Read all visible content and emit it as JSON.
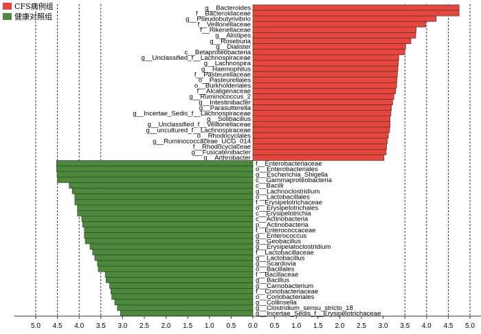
{
  "chart_data": {
    "type": "bar",
    "orientation": "horizontal",
    "title": "",
    "xlabel": "",
    "ylabel": "",
    "xlim": [
      -5.0,
      5.0
    ],
    "axis_ticks": [
      {
        "v": -5.0,
        "label": "5.0"
      },
      {
        "v": -4.5,
        "label": "4.5"
      },
      {
        "v": -4.0,
        "label": "4.0"
      },
      {
        "v": -3.5,
        "label": "3.5"
      },
      {
        "v": -3.0,
        "label": "3.0"
      },
      {
        "v": -2.5,
        "label": "2.5"
      },
      {
        "v": -2.0,
        "label": "2.0"
      },
      {
        "v": -1.5,
        "label": "1.5"
      },
      {
        "v": -1.0,
        "label": "1.0"
      },
      {
        "v": -0.5,
        "label": "0.5"
      },
      {
        "v": 0.0,
        "label": "0.0"
      },
      {
        "v": 0.5,
        "label": "0.5"
      },
      {
        "v": 1.0,
        "label": "1.0"
      },
      {
        "v": 1.5,
        "label": "1.5"
      },
      {
        "v": 2.0,
        "label": "2.0"
      },
      {
        "v": 2.5,
        "label": "2.5"
      },
      {
        "v": 3.0,
        "label": "3.0"
      },
      {
        "v": 3.5,
        "label": "3.5"
      },
      {
        "v": 4.0,
        "label": "4.0"
      },
      {
        "v": 4.5,
        "label": "4.5"
      },
      {
        "v": 5.0,
        "label": "5.0"
      }
    ],
    "dashed_gridlines": [
      -5.0,
      -4.5,
      -4.0,
      -3.5,
      3.5,
      4.0,
      4.5,
      5.0
    ],
    "legend_position": "top-left",
    "series": [
      {
        "name": "CFS病例组",
        "color": "#e8453c",
        "label_side": "left",
        "labels": [
          "g__Bacteroides",
          "f__Bacteroidaceae",
          "g__Pseudobutyrivibrio",
          "f__Veillonellaceae",
          "f__Rikenellaceae",
          "g__Alistipes",
          "g__Roseburia",
          "g__Dialister",
          "c__Betaproteobacteria",
          "g__Unclassified_f__Lachnospiraceae",
          "g__Lachnospira",
          "g__Haemophilus",
          "f__Pasteurellaceae",
          "o__Pasteurellales",
          "o__Burkholderiales",
          "f__Alcaligenaceae",
          "g__Ruminococcus_2",
          "g__Intestinibacter",
          "g__Parasutterella",
          "g__Incertae_Sedis_f__Lachnospiraceae",
          "g__Solibacillus",
          "g__Unclassified_f__Veillonellaceae",
          "g__uncultured_f__Lachnospiraceae",
          "o__Rhodocyclales",
          "g__Ruminococcaceae_UCG_014",
          "f__Rhodocyclaceae",
          "g__Fusicatenibacter",
          "g__Arthrobacter"
        ],
        "values": [
          4.75,
          4.75,
          4.22,
          3.98,
          3.76,
          3.75,
          3.64,
          3.52,
          3.5,
          3.36,
          3.35,
          3.34,
          3.33,
          3.32,
          3.31,
          3.29,
          3.25,
          3.22,
          3.19,
          3.18,
          3.16,
          3.16,
          3.15,
          3.12,
          3.1,
          3.08,
          3.07,
          3.02
        ]
      },
      {
        "name": "健康对照组",
        "color": "#4a8a3a",
        "label_side": "right",
        "labels": [
          "f__Enterobacteriaceae",
          "o__Enterobacteriales",
          "g__Escherichia_Shigella",
          "c__Gammaproteobacteria",
          "c__Bacilli",
          "g__Lachnoclostridium",
          "o__Lactobacillales",
          "f__Erysipelotrichaceae",
          "o__Erysipelotrichales",
          "c__Erysipelotrichia",
          "c__Actinobacteria",
          "p__Actinobacteria",
          "f__Enterococcaceae",
          "g__Enterococcus",
          "g__Geobacillus",
          "g__Erysipelatoclostridium",
          "f__Lactobacillaceae",
          "g__Lactobacillus",
          "g__Scardovia",
          "o__Bacillales",
          "f__Bacillaceae",
          "g__Bacillus",
          "g__Carnobacterium",
          "f__Coriobacteriaceae",
          "o__Coriobacteriales",
          "g__Collinsella",
          "g__Clostridium_sensu_stricto_18",
          "g__Incertae_Sedis_f__Erysipelotrichaceae"
        ],
        "values": [
          4.52,
          4.52,
          4.51,
          4.5,
          4.23,
          4.16,
          4.1,
          4.1,
          4.04,
          4.04,
          3.94,
          3.92,
          3.88,
          3.88,
          3.86,
          3.75,
          3.69,
          3.64,
          3.58,
          3.56,
          3.4,
          3.38,
          3.3,
          3.27,
          3.25,
          3.18,
          3.12,
          3.05
        ]
      }
    ]
  }
}
